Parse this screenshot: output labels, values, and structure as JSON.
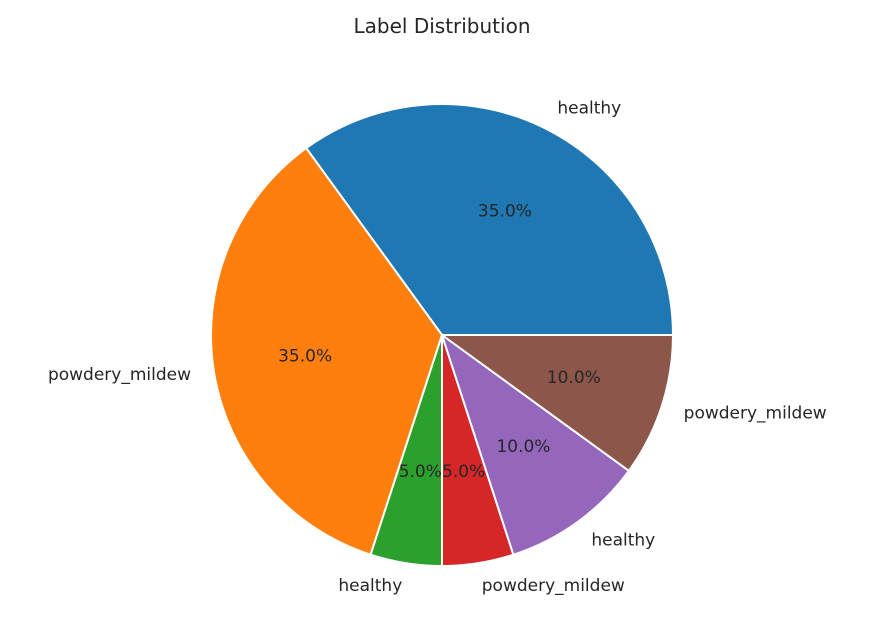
{
  "chart_data": {
    "type": "pie",
    "title": "Label Distribution",
    "slices": [
      {
        "label": "healthy",
        "value": 35.0,
        "pct_label": "35.0%",
        "color": "#1f77b4"
      },
      {
        "label": "powdery_mildew",
        "value": 35.0,
        "pct_label": "35.0%",
        "color": "#ff7f0e"
      },
      {
        "label": "healthy",
        "value": 5.0,
        "pct_label": "5.0%",
        "color": "#2ca02c"
      },
      {
        "label": "powdery_mildew",
        "value": 5.0,
        "pct_label": "5.0%",
        "color": "#d62728"
      },
      {
        "label": "healthy",
        "value": 10.0,
        "pct_label": "10.0%",
        "color": "#9467bd"
      },
      {
        "label": "powdery_mildew",
        "value": 10.0,
        "pct_label": "10.0%",
        "color": "#8c564b"
      }
    ],
    "start_angle_deg": 0,
    "direction": "counterclockwise"
  }
}
